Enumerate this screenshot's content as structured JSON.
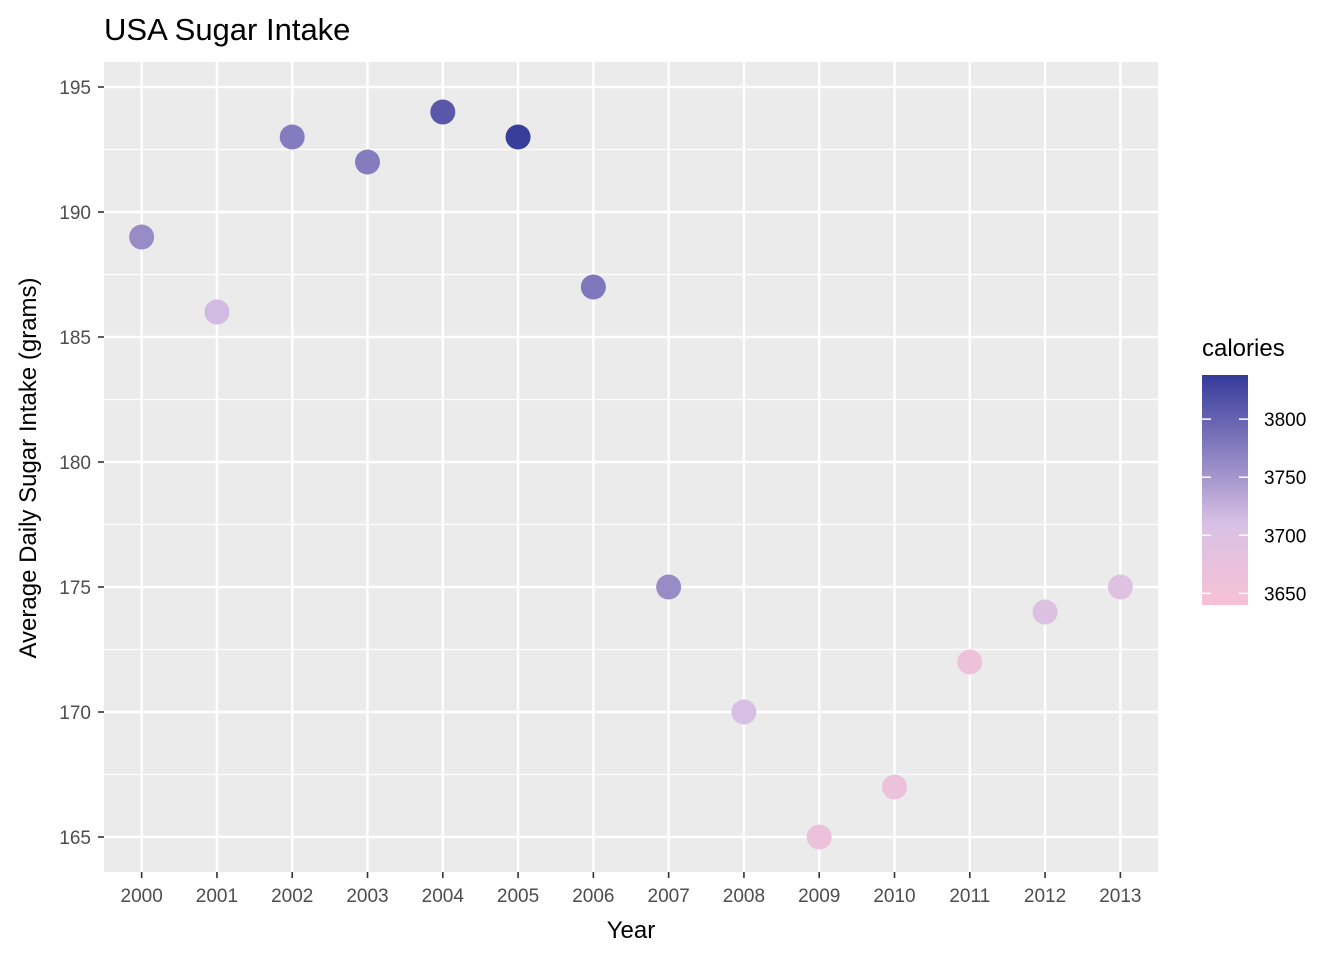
{
  "chart_data": {
    "type": "scatter",
    "title": "USA Sugar Intake",
    "xlabel": "Year",
    "ylabel": "Average Daily Sugar Intake (grams)",
    "x": [
      "2000",
      "2001",
      "2002",
      "2003",
      "2004",
      "2005",
      "2006",
      "2007",
      "2008",
      "2009",
      "2010",
      "2011",
      "2012",
      "2013"
    ],
    "y": [
      189,
      186,
      193,
      192,
      194,
      193,
      187,
      175,
      170,
      165,
      167,
      172,
      174,
      175
    ],
    "color_values": [
      3760,
      3715,
      3775,
      3775,
      3810,
      3835,
      3780,
      3760,
      3710,
      3665,
      3665,
      3660,
      3700,
      3695
    ],
    "ylim": [
      163.6,
      196
    ],
    "y_ticks": [
      165,
      170,
      175,
      180,
      185,
      190,
      195
    ],
    "grid": true,
    "background": "#ebebeb",
    "legend": {
      "title": "calories",
      "placement": "right",
      "ticks": [
        3650,
        3700,
        3750,
        3800
      ],
      "range": [
        3640,
        3838
      ],
      "low_color": "#f7c1d5",
      "mid_color": "#d9c1e5",
      "high_color": "#353a9a"
    }
  }
}
